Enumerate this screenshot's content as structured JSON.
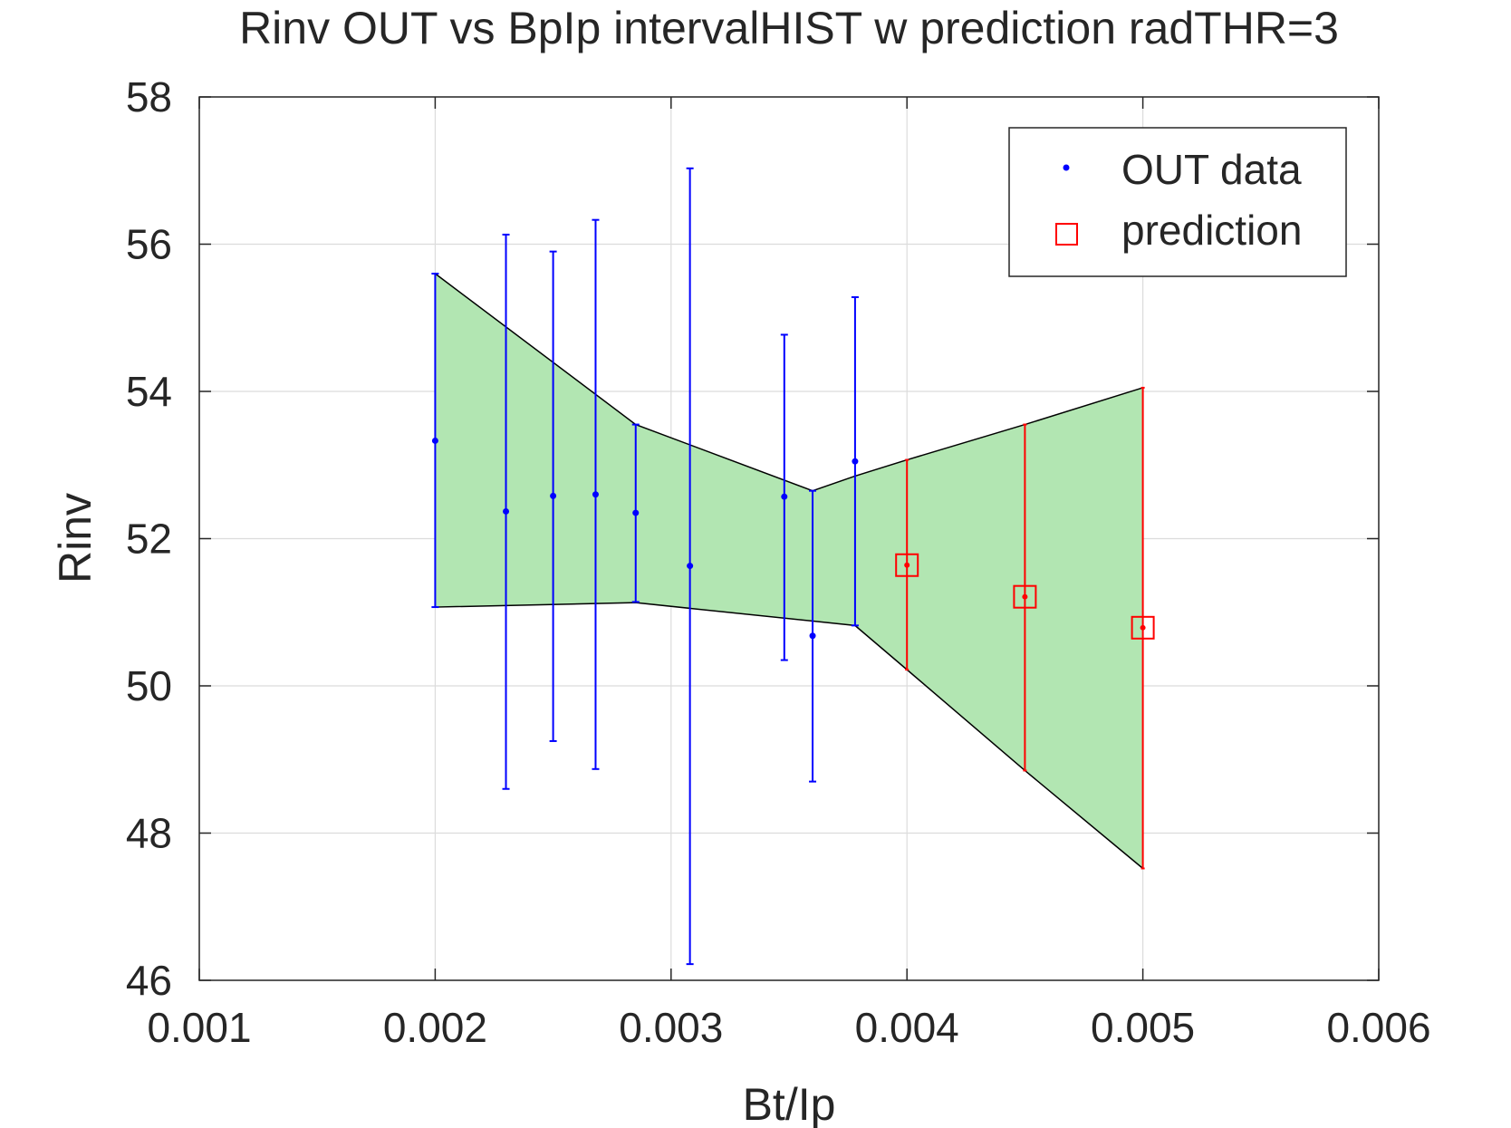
{
  "chart_data": {
    "type": "scatter",
    "title": "Rinv OUT vs BpIp intervalHIST w prediction radTHR=3",
    "xlabel": "Bt/Ip",
    "ylabel": "Rinv",
    "xlim": [
      0.001,
      0.006
    ],
    "ylim": [
      46,
      58
    ],
    "xticks": [
      "0.001",
      "0.002",
      "0.003",
      "0.004",
      "0.005",
      "0.006"
    ],
    "yticks": [
      "46",
      "48",
      "50",
      "52",
      "54",
      "56",
      "58"
    ],
    "grid": true,
    "legend_position": "top-right",
    "band": {
      "color": "#b2e6b2",
      "upper": [
        [
          0.002,
          55.6
        ],
        [
          0.00285,
          53.55
        ],
        [
          0.0036,
          52.65
        ],
        [
          0.00378,
          52.85
        ],
        [
          0.004,
          53.07
        ],
        [
          0.0045,
          53.55
        ],
        [
          0.005,
          54.05
        ]
      ],
      "lower": [
        [
          0.002,
          51.07
        ],
        [
          0.00285,
          51.13
        ],
        [
          0.00378,
          50.82
        ],
        [
          0.004,
          50.22
        ],
        [
          0.0045,
          48.85
        ],
        [
          0.005,
          47.52
        ]
      ]
    },
    "series": [
      {
        "name": "OUT data",
        "color": "#0000ff",
        "marker": "dot",
        "points": [
          {
            "x": 0.002,
            "y": 53.33,
            "low": 51.07,
            "high": 55.6
          },
          {
            "x": 0.0023,
            "y": 52.37,
            "low": 48.6,
            "high": 56.13
          },
          {
            "x": 0.0025,
            "y": 52.58,
            "low": 49.25,
            "high": 55.9
          },
          {
            "x": 0.00268,
            "y": 52.6,
            "low": 48.87,
            "high": 56.33
          },
          {
            "x": 0.00285,
            "y": 52.35,
            "low": 51.14,
            "high": 53.55
          },
          {
            "x": 0.00308,
            "y": 51.63,
            "low": 46.22,
            "high": 57.03
          },
          {
            "x": 0.00348,
            "y": 52.57,
            "low": 50.35,
            "high": 54.77
          },
          {
            "x": 0.0036,
            "y": 50.68,
            "low": 48.7,
            "high": 52.65
          },
          {
            "x": 0.00378,
            "y": 53.05,
            "low": 50.82,
            "high": 55.28
          }
        ]
      },
      {
        "name": "prediction",
        "color": "#ff0000",
        "marker": "square",
        "points": [
          {
            "x": 0.004,
            "y": 51.64,
            "low": 50.22,
            "high": 53.07
          },
          {
            "x": 0.0045,
            "y": 51.21,
            "low": 48.85,
            "high": 53.55
          },
          {
            "x": 0.005,
            "y": 50.79,
            "low": 47.52,
            "high": 54.05
          }
        ]
      }
    ]
  }
}
